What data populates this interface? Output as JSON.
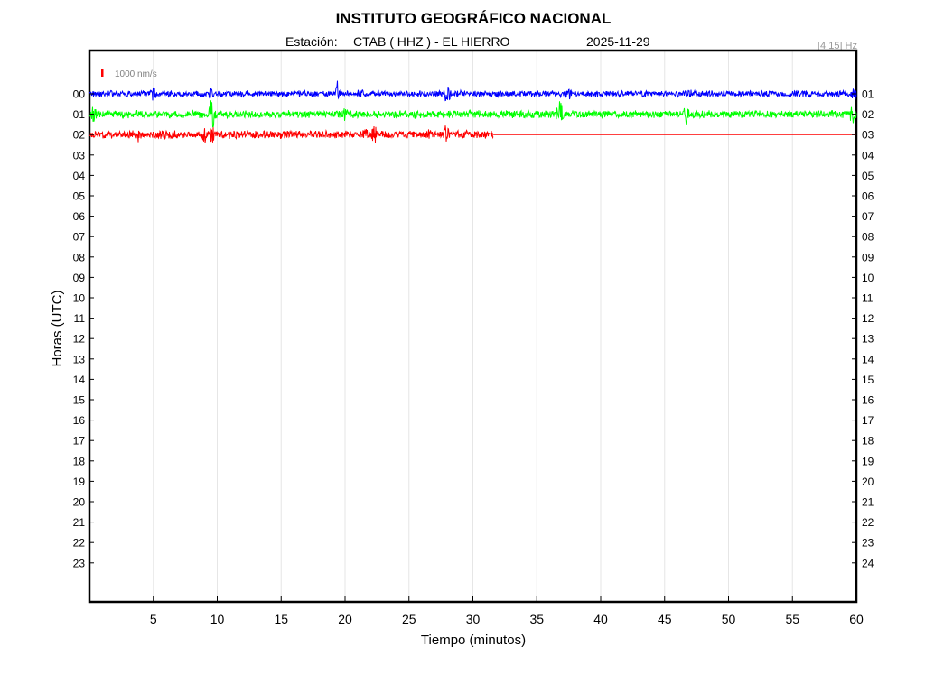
{
  "header": {
    "title": "INSTITUTO GEOGRÁFICO NACIONAL",
    "station_prefix": "Estación:",
    "station": "CTAB ( HHZ ) - EL HIERRO",
    "date": "2025-11-29",
    "filter_band": "[4 15] Hz"
  },
  "chart_data": {
    "type": "line",
    "plot_kind": "helicorder",
    "title": "INSTITUTO GEOGRÁFICO NACIONAL",
    "xlabel": "Tiempo (minutos)",
    "ylabel": "Horas (UTC)",
    "xlim": [
      0,
      60
    ],
    "x_ticks": [
      5,
      10,
      15,
      20,
      25,
      30,
      35,
      40,
      45,
      50,
      55,
      60
    ],
    "vertical_gridlines": true,
    "left_hour_labels": [
      "00",
      "01",
      "02",
      "03",
      "04",
      "05",
      "06",
      "07",
      "08",
      "09",
      "10",
      "11",
      "12",
      "13",
      "14",
      "15",
      "16",
      "17",
      "18",
      "19",
      "20",
      "21",
      "22",
      "23"
    ],
    "right_hour_labels": [
      "01",
      "02",
      "03",
      "04",
      "05",
      "06",
      "07",
      "08",
      "09",
      "10",
      "11",
      "12",
      "13",
      "14",
      "15",
      "16",
      "17",
      "18",
      "19",
      "20",
      "21",
      "22",
      "23",
      "24"
    ],
    "scale_bar_label": "1000 nm/s",
    "scale_bar_color": "#ff0000",
    "trace_colors": [
      "#0000ff",
      "#00ff00",
      "#ff0000"
    ],
    "series": [
      {
        "hour": "00",
        "color": "#0000ff",
        "x_start": 0,
        "x_end": 60,
        "amplitude": 0.25,
        "events": [
          {
            "x": 5.0,
            "amp": 0.6
          },
          {
            "x": 9.5,
            "amp": 0.45
          },
          {
            "x": 19.4,
            "amp": 1.1
          },
          {
            "x": 21.2,
            "amp": 0.5
          },
          {
            "x": 28.0,
            "amp": 0.9
          },
          {
            "x": 37.5,
            "amp": 0.5
          },
          {
            "x": 47.0,
            "amp": 0.45
          },
          {
            "x": 59.8,
            "amp": 0.5
          }
        ]
      },
      {
        "hour": "01",
        "color": "#00ff00",
        "x_start": 0,
        "x_end": 60,
        "amplitude": 0.3,
        "events": [
          {
            "x": 0.3,
            "amp": 0.7
          },
          {
            "x": 9.6,
            "amp": 1.6
          },
          {
            "x": 20.0,
            "amp": 0.6
          },
          {
            "x": 36.8,
            "amp": 1.4
          },
          {
            "x": 46.7,
            "amp": 0.9
          },
          {
            "x": 59.7,
            "amp": 0.9
          }
        ]
      },
      {
        "hour": "02",
        "color": "#ff0000",
        "x_start": 0,
        "x_end": 31.6,
        "flatline_to": 60,
        "amplitude": 0.32,
        "events": [
          {
            "x": 3.8,
            "amp": 0.6
          },
          {
            "x": 9.0,
            "amp": 0.9
          },
          {
            "x": 9.6,
            "amp": 0.7
          },
          {
            "x": 21.6,
            "amp": 0.6
          },
          {
            "x": 22.3,
            "amp": 0.9
          },
          {
            "x": 26.5,
            "amp": 0.5
          },
          {
            "x": 27.9,
            "amp": 0.8
          }
        ]
      }
    ]
  }
}
